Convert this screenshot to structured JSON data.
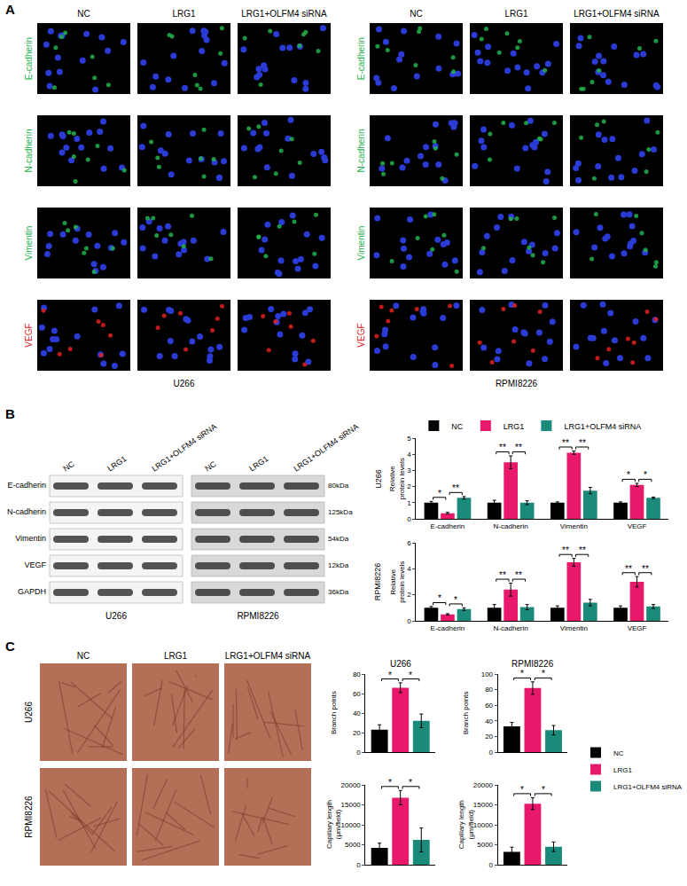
{
  "panel_a": {
    "letter": "A",
    "conditions": [
      "NC",
      "LRG1",
      "LRG1+OLFM4 siRNA"
    ],
    "markers": [
      {
        "name": "E-cadherin",
        "color": "#22b14c"
      },
      {
        "name": "N-cadherin",
        "color": "#22b14c"
      },
      {
        "name": "Vimentin",
        "color": "#22b14c"
      },
      {
        "name": "VEGF",
        "color": "#e02020"
      }
    ],
    "cell_lines": [
      "U266",
      "RPMI8226"
    ]
  },
  "panel_b_blot": {
    "letter": "B",
    "conditions": [
      "NC",
      "LRG1",
      "LRG1+OLFM4 siRNA"
    ],
    "rows": [
      {
        "name": "E-cadherin",
        "size": "80kDa"
      },
      {
        "name": "N-cadherin",
        "size": "125kDa"
      },
      {
        "name": "Vimentin",
        "size": "54kDa"
      },
      {
        "name": "VEGF",
        "size": "12kDa"
      },
      {
        "name": "GAPDH",
        "size": "36kDa"
      }
    ],
    "cell_lines": [
      "U266",
      "RPMI8226"
    ]
  },
  "panel_c_images": {
    "letter": "C",
    "conditions": [
      "NC",
      "LRG1",
      "LRG1+OLFM4 siRNA"
    ],
    "cell_lines": [
      "U266",
      "RPMI8226"
    ]
  },
  "chart_data": [
    {
      "type": "bar",
      "title": "U266",
      "ylabel": "Relative protein levels",
      "categories": [
        "E-cadherin",
        "N-cadherin",
        "Vimentin",
        "VEGF"
      ],
      "series": [
        {
          "name": "NC",
          "color": "#000000",
          "values": [
            1,
            1,
            1,
            1
          ],
          "errors": [
            0.08,
            0.15,
            0.05,
            0.05
          ]
        },
        {
          "name": "LRG1",
          "color": "#e8196b",
          "values": [
            0.35,
            3.5,
            4.1,
            2.1
          ],
          "errors": [
            0.05,
            0.4,
            0.1,
            0.1
          ]
        },
        {
          "name": "LRG1+OLFM4 siRNA",
          "color": "#1a8a7a",
          "values": [
            1.3,
            1.0,
            1.75,
            1.3
          ],
          "errors": [
            0.08,
            0.12,
            0.2,
            0.05
          ]
        }
      ],
      "ylim": [
        0,
        5
      ],
      "yticks": [
        0,
        1,
        2,
        3,
        4,
        5
      ],
      "legend": "top",
      "significance": [
        {
          "at": "E-cadherin",
          "from": "NC",
          "to": "LRG1",
          "label": "*"
        },
        {
          "at": "E-cadherin",
          "from": "LRG1",
          "to": "LRG1+OLFM4 siRNA",
          "label": "**"
        },
        {
          "at": "N-cadherin",
          "from": "NC",
          "to": "LRG1",
          "label": "**"
        },
        {
          "at": "N-cadherin",
          "from": "LRG1",
          "to": "LRG1+OLFM4 siRNA",
          "label": "**"
        },
        {
          "at": "Vimentin",
          "from": "NC",
          "to": "LRG1",
          "label": "**"
        },
        {
          "at": "Vimentin",
          "from": "LRG1",
          "to": "LRG1+OLFM4 siRNA",
          "label": "**"
        },
        {
          "at": "VEGF",
          "from": "NC",
          "to": "LRG1",
          "label": "*"
        },
        {
          "at": "VEGF",
          "from": "LRG1",
          "to": "LRG1+OLFM4 siRNA",
          "label": "*"
        }
      ]
    },
    {
      "type": "bar",
      "title": "RPMI8226",
      "ylabel": "Relative protein levels",
      "categories": [
        "E-cadherin",
        "N-cadherin",
        "Vimentin",
        "VEGF"
      ],
      "series": [
        {
          "name": "NC",
          "color": "#000000",
          "values": [
            1,
            1,
            1,
            1
          ],
          "errors": [
            0.1,
            0.25,
            0.15,
            0.15
          ]
        },
        {
          "name": "LRG1",
          "color": "#e8196b",
          "values": [
            0.5,
            2.4,
            4.5,
            3.0
          ],
          "errors": [
            0.05,
            0.5,
            0.3,
            0.4
          ]
        },
        {
          "name": "LRG1+OLFM4 siRNA",
          "color": "#1a8a7a",
          "values": [
            0.9,
            1.05,
            1.4,
            1.1
          ],
          "errors": [
            0.1,
            0.2,
            0.25,
            0.15
          ]
        }
      ],
      "ylim": [
        0,
        6
      ],
      "yticks": [
        0,
        2,
        4,
        6
      ],
      "significance": [
        {
          "at": "E-cadherin",
          "from": "NC",
          "to": "LRG1",
          "label": "*"
        },
        {
          "at": "E-cadherin",
          "from": "LRG1",
          "to": "LRG1+OLFM4 siRNA",
          "label": "*"
        },
        {
          "at": "N-cadherin",
          "from": "NC",
          "to": "LRG1",
          "label": "**"
        },
        {
          "at": "N-cadherin",
          "from": "LRG1",
          "to": "LRG1+OLFM4 siRNA",
          "label": "**"
        },
        {
          "at": "Vimentin",
          "from": "NC",
          "to": "LRG1",
          "label": "**"
        },
        {
          "at": "Vimentin",
          "from": "LRG1",
          "to": "LRG1+OLFM4 siRNA",
          "label": "**"
        },
        {
          "at": "VEGF",
          "from": "NC",
          "to": "LRG1",
          "label": "**"
        },
        {
          "at": "VEGF",
          "from": "LRG1",
          "to": "LRG1+OLFM4 siRNA",
          "label": "**"
        }
      ]
    },
    {
      "type": "bar",
      "title": "U266",
      "ylabel": "Branch points",
      "categories": [
        null
      ],
      "series": [
        {
          "name": "NC",
          "color": "#000000",
          "values": [
            23
          ],
          "errors": [
            5
          ]
        },
        {
          "name": "LRG1",
          "color": "#e8196b",
          "values": [
            66
          ],
          "errors": [
            5
          ]
        },
        {
          "name": "LRG1+OLFM4 siRNA",
          "color": "#1a8a7a",
          "values": [
            32
          ],
          "errors": [
            7
          ]
        }
      ],
      "ylim": [
        0,
        80
      ],
      "yticks": [
        0,
        20,
        40,
        60,
        80
      ],
      "legend": "right",
      "significance": [
        {
          "at": null,
          "from": "NC",
          "to": "LRG1",
          "label": "*"
        },
        {
          "at": null,
          "from": "LRG1",
          "to": "LRG1+OLFM4 siRNA",
          "label": "*"
        }
      ]
    },
    {
      "type": "bar",
      "title": "RPMI8226",
      "ylabel": "Branch points",
      "categories": [
        null
      ],
      "series": [
        {
          "name": "NC",
          "color": "#000000",
          "values": [
            33
          ],
          "errors": [
            5
          ]
        },
        {
          "name": "LRG1",
          "color": "#e8196b",
          "values": [
            82
          ],
          "errors": [
            8
          ]
        },
        {
          "name": "LRG1+OLFM4 siRNA",
          "color": "#1a8a7a",
          "values": [
            28
          ],
          "errors": [
            6
          ]
        }
      ],
      "ylim": [
        0,
        100
      ],
      "yticks": [
        0,
        20,
        40,
        60,
        80,
        100
      ],
      "significance": [
        {
          "at": null,
          "from": "NC",
          "to": "LRG1",
          "label": "*"
        },
        {
          "at": null,
          "from": "LRG1",
          "to": "LRG1+OLFM4 siRNA",
          "label": "*"
        }
      ]
    },
    {
      "type": "bar",
      "ylabel": "Capillary length (μm/field)",
      "categories": [
        null
      ],
      "series": [
        {
          "name": "NC",
          "color": "#000000",
          "values": [
            4200
          ],
          "errors": [
            1200
          ]
        },
        {
          "name": "LRG1",
          "color": "#e8196b",
          "values": [
            16800
          ],
          "errors": [
            1800
          ]
        },
        {
          "name": "LRG1+OLFM4 siRNA",
          "color": "#1a8a7a",
          "values": [
            6200
          ],
          "errors": [
            3000
          ]
        }
      ],
      "ylim": [
        0,
        20000
      ],
      "yticks": [
        0,
        5000,
        10000,
        15000,
        20000
      ],
      "significance": [
        {
          "at": null,
          "from": "NC",
          "to": "LRG1",
          "label": "*"
        },
        {
          "at": null,
          "from": "LRG1",
          "to": "LRG1+OLFM4 siRNA",
          "label": "*"
        }
      ]
    },
    {
      "type": "bar",
      "ylabel": "Capillary length (μm/field)",
      "categories": [
        null
      ],
      "series": [
        {
          "name": "NC",
          "color": "#000000",
          "values": [
            3200
          ],
          "errors": [
            1200
          ]
        },
        {
          "name": "LRG1",
          "color": "#e8196b",
          "values": [
            15300
          ],
          "errors": [
            1500
          ]
        },
        {
          "name": "LRG1+OLFM4 siRNA",
          "color": "#1a8a7a",
          "values": [
            4500
          ],
          "errors": [
            1200
          ]
        }
      ],
      "ylim": [
        0,
        20000
      ],
      "yticks": [
        0,
        5000,
        10000,
        15000,
        20000
      ],
      "significance": [
        {
          "at": null,
          "from": "NC",
          "to": "LRG1",
          "label": "*"
        },
        {
          "at": null,
          "from": "LRG1",
          "to": "LRG1+OLFM4 siRNA",
          "label": "*"
        }
      ]
    }
  ]
}
